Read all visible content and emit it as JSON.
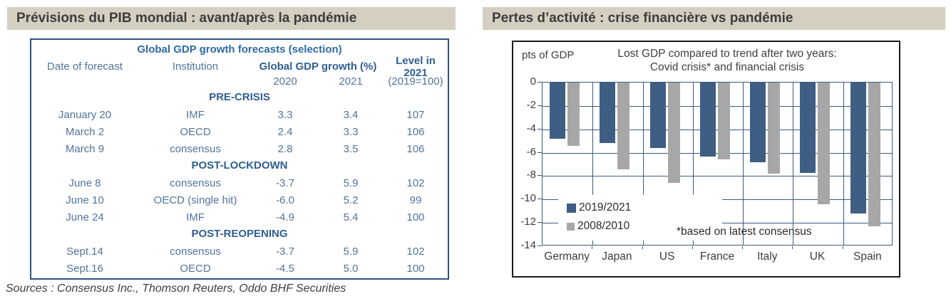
{
  "left_panel": {
    "title": "Prévisions du PIB mondial : avant/après la pandémie",
    "table": {
      "title": "Global GDP growth forecasts (selection)",
      "col_headers": {
        "date": "Date of forecast",
        "institution": "Institution",
        "growth": "Global GDP growth (%)",
        "level": "Level in 2021",
        "y2020": "2020",
        "y2021": "2021",
        "level_sub": "(2019=100)"
      },
      "sections": [
        {
          "label": "PRE-CRISIS",
          "rows": [
            [
              "January 20",
              "IMF",
              "3.3",
              "3.4",
              "107"
            ],
            [
              "March 2",
              "OECD",
              "2.4",
              "3.3",
              "106"
            ],
            [
              "March 9",
              "consensus",
              "2.8",
              "3.5",
              "106"
            ]
          ]
        },
        {
          "label": "POST-LOCKDOWN",
          "rows": [
            [
              "June 8",
              "consensus",
              "-3.7",
              "5.9",
              "102"
            ],
            [
              "June 10",
              "OECD (single hit)",
              "-6.0",
              "5.2",
              "99"
            ],
            [
              "June 24",
              "IMF",
              "-4.9",
              "5.4",
              "100"
            ]
          ]
        },
        {
          "label": "POST-REOPENING",
          "rows": [
            [
              "Sept.14",
              "consensus",
              "-3.7",
              "5.9",
              "102"
            ],
            [
              "Sept.16",
              "OECD",
              "-4.5",
              "5.0",
              "100"
            ]
          ]
        }
      ]
    },
    "sources": "Sources : Consensus Inc., Thomson Reuters, Oddo BHF Securities"
  },
  "right_panel": {
    "title": "Pertes d’activité : crise financière vs pandémie",
    "chart": {
      "title_line1": "Lost GDP compared to trend after two years:",
      "title_line2": "Covid crisis* and financial crisis"
    }
  },
  "chart_data": {
    "type": "bar",
    "title": "Lost GDP compared to trend after two years: Covid crisis* and financial crisis",
    "ylabel": "pts of GDP",
    "xlabel": "",
    "categories": [
      "Germany",
      "Japan",
      "US",
      "France",
      "Italy",
      "UK",
      "Spain"
    ],
    "series": [
      {
        "name": "2019/2021",
        "color": "#3e5e84",
        "values": [
          -4.8,
          -5.2,
          -5.6,
          -6.3,
          -6.8,
          -7.7,
          -11.2
        ]
      },
      {
        "name": "2008/2010",
        "color": "#a7a7a7",
        "values": [
          -5.4,
          -7.4,
          -8.6,
          -6.6,
          -7.8,
          -10.4,
          -12.3
        ]
      }
    ],
    "ylim": [
      -14,
      0
    ],
    "yticks": [
      0,
      -2,
      -4,
      -6,
      -8,
      -10,
      -12,
      -14
    ],
    "annotation": "*based on latest consensus",
    "legend_position": "inside bottom-left",
    "grid": true
  },
  "colors": {
    "panel_header_bg": "#d5cfc1",
    "panel_header_text": "#3c3c3c",
    "table_border": "#2f5478",
    "table_text": "#51749b",
    "table_bold_text": "#2e5e93",
    "chart_grid": "#3d5a7d",
    "bar_blue": "#3e5e84",
    "bar_gray": "#a7a7a7",
    "chart_text": "#404040"
  }
}
